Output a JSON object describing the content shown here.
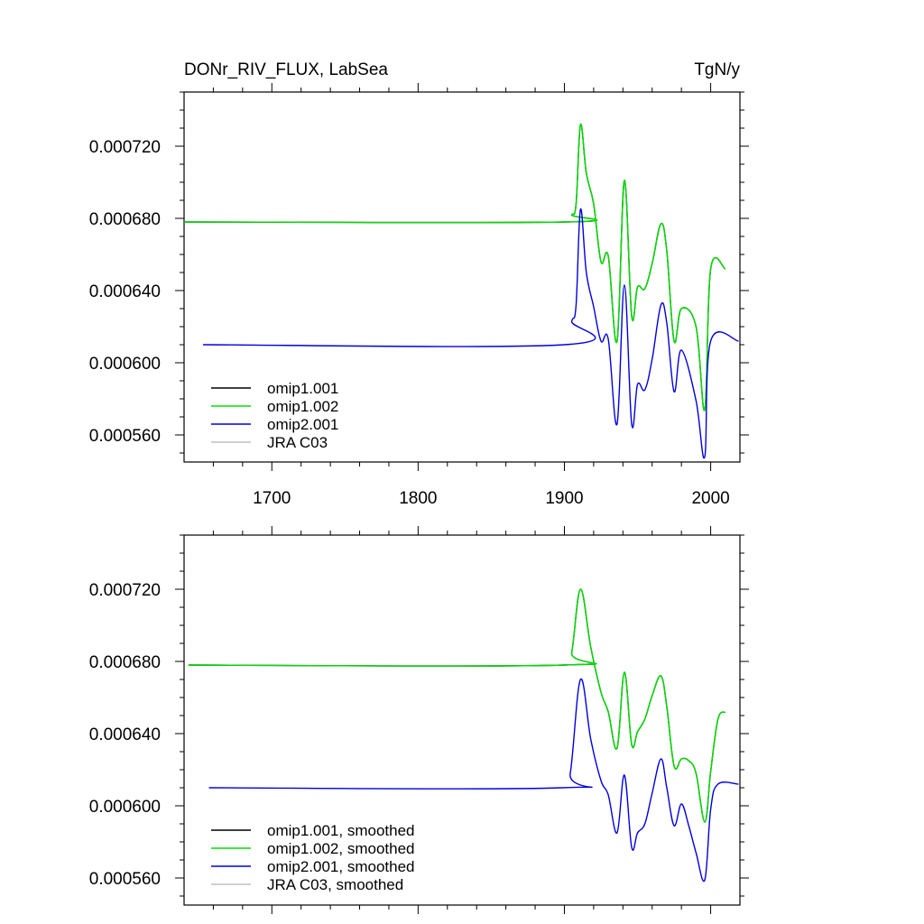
{
  "header": {
    "title": "DONr_RIV_FLUX, LabSea",
    "units": "TgN/y"
  },
  "chart_data": [
    {
      "type": "line",
      "panel": "raw",
      "title": "DONr_RIV_FLUX, LabSea",
      "units": "TgN/y",
      "xlim": [
        1640,
        2020
      ],
      "ylim": [
        0.000545,
        0.00075
      ],
      "x_ticks": [
        1700,
        1800,
        1900,
        2000
      ],
      "x_tick_labels": [
        "1700",
        "1800",
        "1900",
        "2000"
      ],
      "y_ticks": [
        0.00056,
        0.0006,
        0.00064,
        0.00068,
        0.00072
      ],
      "y_tick_labels": [
        "0.000560",
        "0.000600",
        "0.000640",
        "0.000680",
        "0.000720"
      ],
      "legend": [
        "omip1.001",
        "omip1.002",
        "omip2.001",
        "JRA C03"
      ],
      "legend_position": "bottom-left",
      "series": [
        {
          "name": "omip1.001",
          "color": "#000000",
          "x": [
            1640,
            1900,
            1905,
            1908,
            1911,
            1915,
            1920,
            1925,
            1930,
            1936,
            1941,
            1946,
            1950,
            1955,
            1960,
            1966,
            1970,
            1975,
            1980,
            1990,
            1996,
            2000,
            2010
          ],
          "y": [
            0.000678,
            0.000678,
            0.000682,
            0.000688,
            0.000732,
            0.000705,
            0.000688,
            0.000656,
            0.000659,
            0.000612,
            0.000701,
            0.000626,
            0.000642,
            0.000641,
            0.000655,
            0.000677,
            0.000662,
            0.000612,
            0.00063,
            0.00062,
            0.000574,
            0.000652,
            0.000652
          ]
        },
        {
          "name": "omip1.002",
          "color": "#00e000",
          "x": [
            1640,
            1900,
            1905,
            1908,
            1911,
            1915,
            1920,
            1925,
            1930,
            1936,
            1941,
            1946,
            1950,
            1955,
            1960,
            1966,
            1970,
            1975,
            1980,
            1990,
            1996,
            2000,
            2010
          ],
          "y": [
            0.000678,
            0.000678,
            0.000682,
            0.000688,
            0.000732,
            0.000705,
            0.000688,
            0.000656,
            0.000659,
            0.000612,
            0.000701,
            0.000626,
            0.000642,
            0.000641,
            0.000655,
            0.000677,
            0.000662,
            0.000612,
            0.00063,
            0.00062,
            0.000574,
            0.000652,
            0.000652
          ]
        },
        {
          "name": "omip2.001",
          "color": "#0000e0",
          "x": [
            1653,
            1900,
            1905,
            1908,
            1911,
            1915,
            1920,
            1925,
            1930,
            1936,
            1941,
            1946,
            1950,
            1955,
            1960,
            1966,
            1970,
            1975,
            1980,
            1990,
            1996,
            2000,
            2019
          ],
          "y": [
            0.00061,
            0.00061,
            0.000623,
            0.000632,
            0.000685,
            0.00065,
            0.000631,
            0.000612,
            0.000613,
            0.000566,
            0.000643,
            0.000566,
            0.000588,
            0.000585,
            0.000602,
            0.000632,
            0.000622,
            0.000584,
            0.000607,
            0.000579,
            0.000548,
            0.000612,
            0.000612
          ]
        },
        {
          "name": "JRA C03",
          "color": "#c0c0c0",
          "x": [],
          "y": []
        }
      ]
    },
    {
      "type": "line",
      "panel": "smoothed",
      "xlim": [
        1640,
        2020
      ],
      "ylim": [
        0.000545,
        0.00075
      ],
      "x_ticks": [
        1700,
        1800,
        1900,
        2000
      ],
      "y_ticks": [
        0.00056,
        0.0006,
        0.00064,
        0.00068,
        0.00072
      ],
      "y_tick_labels": [
        "0.000560",
        "0.000600",
        "0.000640",
        "0.000680",
        "0.000720"
      ],
      "legend": [
        "omip1.001, smoothed",
        "omip1.002, smoothed",
        "omip2.001, smoothed",
        "JRA C03, smoothed"
      ],
      "legend_position": "bottom-left",
      "series": [
        {
          "name": "omip1.001, smoothed",
          "color": "#000000",
          "x": [
            1643,
            1900,
            1905,
            1911,
            1918,
            1925,
            1930,
            1936,
            1941,
            1946,
            1950,
            1955,
            1960,
            1966,
            1970,
            1975,
            1980,
            1985,
            1990,
            1996,
            2000,
            2005,
            2010
          ],
          "y": [
            0.000678,
            0.000678,
            0.000685,
            0.00072,
            0.000688,
            0.000663,
            0.000652,
            0.000632,
            0.000674,
            0.000634,
            0.000641,
            0.000648,
            0.000661,
            0.000672,
            0.000655,
            0.000622,
            0.000626,
            0.000625,
            0.000618,
            0.000591,
            0.000619,
            0.000648,
            0.000652
          ]
        },
        {
          "name": "omip1.002, smoothed",
          "color": "#00e000",
          "x": [
            1643,
            1900,
            1905,
            1911,
            1918,
            1925,
            1930,
            1936,
            1941,
            1946,
            1950,
            1955,
            1960,
            1966,
            1970,
            1975,
            1980,
            1985,
            1990,
            1996,
            2000,
            2005,
            2010
          ],
          "y": [
            0.000678,
            0.000678,
            0.000685,
            0.00072,
            0.000688,
            0.000663,
            0.000652,
            0.000632,
            0.000674,
            0.000634,
            0.000641,
            0.000648,
            0.000661,
            0.000672,
            0.000655,
            0.000622,
            0.000626,
            0.000625,
            0.000618,
            0.000591,
            0.000619,
            0.000648,
            0.000652
          ]
        },
        {
          "name": "omip2.001, smoothed",
          "color": "#0000e0",
          "x": [
            1657,
            1898,
            1904,
            1911,
            1918,
            1925,
            1930,
            1936,
            1941,
            1946,
            1950,
            1955,
            1960,
            1966,
            1970,
            1975,
            1980,
            1985,
            1990,
            1996,
            2000,
            2005,
            2019
          ],
          "y": [
            0.00061,
            0.00061,
            0.000618,
            0.00067,
            0.000637,
            0.000614,
            0.000606,
            0.000585,
            0.000617,
            0.000577,
            0.000585,
            0.00059,
            0.000607,
            0.000626,
            0.00061,
            0.000589,
            0.000601,
            0.000589,
            0.000574,
            0.000559,
            0.000598,
            0.000612,
            0.000612
          ]
        },
        {
          "name": "JRA C03, smoothed",
          "color": "#c0c0c0",
          "x": [],
          "y": []
        }
      ]
    }
  ]
}
